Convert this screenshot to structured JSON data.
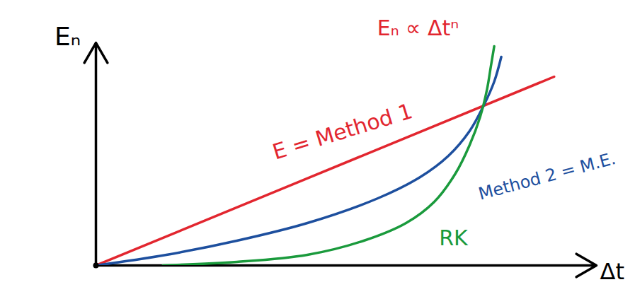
{
  "chart_data": {
    "type": "line",
    "x_label": "Δt",
    "y_label": "Eₙ",
    "xlim": [
      0,
      71
    ],
    "ylim": [
      0,
      31.5
    ],
    "xticks": [],
    "yticks": [],
    "tick_labels": false,
    "grid": false,
    "series": [
      {
        "name": "E = Method 1",
        "color": "#e2262f",
        "x": [
          0,
          65
        ],
        "values": [
          0,
          26.7
        ]
      },
      {
        "name": "Method 2 = M.E.",
        "color": "#1d4f9e",
        "x": [
          0,
          10,
          20,
          30,
          40,
          46,
          50,
          53,
          55,
          56.5,
          57.5
        ],
        "values": [
          0,
          1.5,
          3.5,
          6,
          9.5,
          12.5,
          15.5,
          19,
          22.6,
          26,
          29.5
        ]
      },
      {
        "name": "RK",
        "color": "#1a9a3c",
        "x": [
          9.5,
          20,
          30,
          38,
          44,
          48,
          51,
          53,
          54.5,
          55.5,
          56,
          56.5
        ],
        "values": [
          0,
          0.5,
          1.5,
          3.5,
          6,
          9,
          13,
          17,
          21,
          25,
          28,
          31
        ]
      }
    ],
    "annotations": [
      {
        "text": "Eₙ ∝ Δtⁿ",
        "color": "#e2262f"
      }
    ]
  }
}
